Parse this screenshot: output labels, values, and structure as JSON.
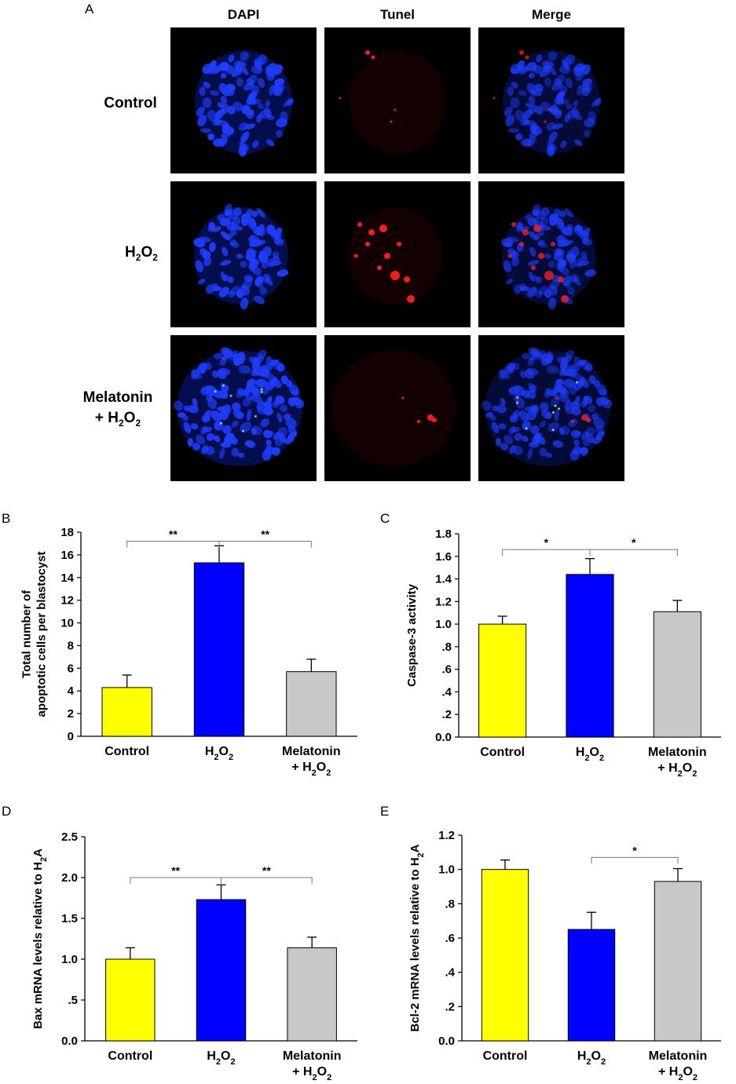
{
  "panel_a": {
    "letter": "A",
    "columns": [
      "DAPI",
      "Tunel",
      "Merge"
    ],
    "rows": [
      {
        "label_lines": [
          "Control"
        ]
      },
      {
        "label_lines": [
          "H2O2"
        ]
      },
      {
        "label_lines": [
          "Melatonin",
          "+ H2O2"
        ]
      }
    ],
    "colors": {
      "dapi": "#1f3dff",
      "tunel": "#ff2020"
    }
  },
  "chart_data": [
    {
      "panel": "B",
      "type": "bar",
      "ylabel": [
        "Total number of",
        "apoptotic cells per blastocyst"
      ],
      "categories": [
        [
          "Control"
        ],
        [
          "H₂O₂"
        ],
        [
          "Melatonin",
          "+ H₂O₂"
        ]
      ],
      "values": [
        4.3,
        15.3,
        5.7
      ],
      "errors": [
        1.1,
        1.5,
        1.1
      ],
      "ylim": [
        0,
        18
      ],
      "yticks": [
        0,
        2,
        4,
        6,
        8,
        10,
        12,
        14,
        16,
        18
      ],
      "ytick_labels": [
        "0",
        "2",
        "4",
        "6",
        "8",
        "10",
        "12",
        "14",
        "16",
        "18"
      ],
      "colors": [
        "#ffff00",
        "#0000ff",
        "#c8c8c8"
      ],
      "significance": [
        {
          "from": 0,
          "to": 1,
          "label": "**",
          "y": 17.2
        },
        {
          "from": 1,
          "to": 2,
          "label": "**",
          "y": 17.2
        }
      ]
    },
    {
      "panel": "C",
      "type": "bar",
      "ylabel": [
        "Caspase-3 activity"
      ],
      "categories": [
        [
          "Control"
        ],
        [
          "H₂O₂"
        ],
        [
          "Melatonin",
          "+ H₂O₂"
        ]
      ],
      "values": [
        1.0,
        1.44,
        1.11
      ],
      "errors": [
        0.07,
        0.14,
        0.1
      ],
      "ylim": [
        0,
        1.8
      ],
      "yticks": [
        0,
        0.2,
        0.4,
        0.6,
        0.8,
        1.0,
        1.2,
        1.4,
        1.6,
        1.8
      ],
      "ytick_labels": [
        "0.0",
        ".2",
        ".4",
        ".6",
        ".8",
        "1.0",
        "1.2",
        "1.4",
        "1.6",
        "1.8"
      ],
      "colors": [
        "#ffff00",
        "#0000ff",
        "#c8c8c8"
      ],
      "significance": [
        {
          "from": 0,
          "to": 1,
          "label": "*",
          "y": 1.66
        },
        {
          "from": 1,
          "to": 2,
          "label": "*",
          "y": 1.66
        }
      ]
    },
    {
      "panel": "D",
      "type": "bar",
      "ylabel": [
        "Bax mRNA levels relative to H₂A"
      ],
      "categories": [
        [
          "Control"
        ],
        [
          "H₂O₂"
        ],
        [
          "Melatonin",
          "+ H₂O₂"
        ]
      ],
      "values": [
        1.0,
        1.73,
        1.14
      ],
      "errors": [
        0.14,
        0.18,
        0.13
      ],
      "ylim": [
        0,
        2.5
      ],
      "yticks": [
        0,
        0.5,
        1.0,
        1.5,
        2.0,
        2.5
      ],
      "ytick_labels": [
        "0.0",
        ".5",
        "1.0",
        "1.5",
        "2.0",
        "2.5"
      ],
      "colors": [
        "#ffff00",
        "#0000ff",
        "#c8c8c8"
      ],
      "significance": [
        {
          "from": 0,
          "to": 1,
          "label": "**",
          "y": 2.0
        },
        {
          "from": 1,
          "to": 2,
          "label": "**",
          "y": 2.0
        }
      ]
    },
    {
      "panel": "E",
      "type": "bar",
      "ylabel": [
        "Bcl-2 mRNA levels relative to H₂A"
      ],
      "categories": [
        [
          "Control"
        ],
        [
          "H₂O₂"
        ],
        [
          "Melatonin",
          "+ H₂O₂"
        ]
      ],
      "values": [
        1.0,
        0.65,
        0.93
      ],
      "errors": [
        0.055,
        0.1,
        0.075
      ],
      "ylim": [
        0,
        1.2
      ],
      "yticks": [
        0,
        0.2,
        0.4,
        0.6,
        0.8,
        1.0,
        1.2
      ],
      "ytick_labels": [
        "0.0",
        ".2",
        ".4",
        ".6",
        ".8",
        "1.0",
        "1.2"
      ],
      "colors": [
        "#ffff00",
        "#0000ff",
        "#c8c8c8"
      ],
      "significance": [
        {
          "from": 1,
          "to": 2,
          "label": "*",
          "y": 1.07
        }
      ]
    }
  ]
}
